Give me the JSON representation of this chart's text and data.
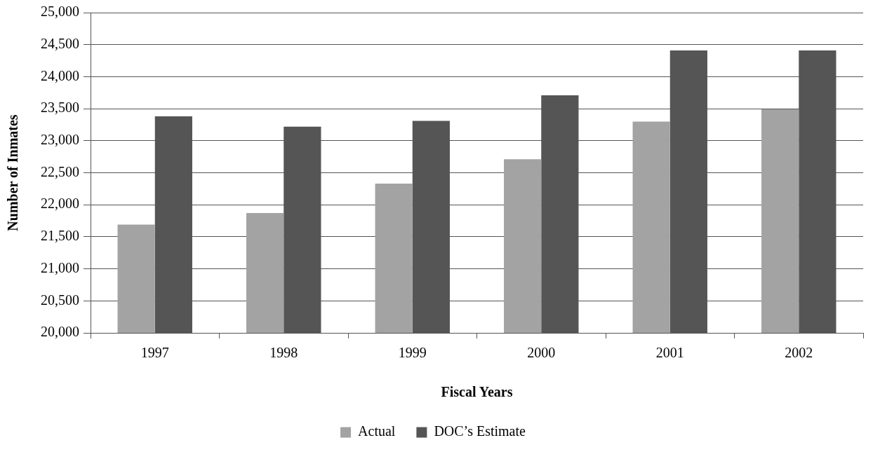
{
  "chart_data": {
    "type": "bar",
    "xlabel": "Fiscal Years",
    "ylabel": "Number of Inmates",
    "categories": [
      "1997",
      "1998",
      "1999",
      "2000",
      "2001",
      "2002"
    ],
    "series": [
      {
        "name": "Actual",
        "color": "#a3a3a3",
        "values": [
          21690,
          21870,
          22330,
          22710,
          23300,
          23490
        ]
      },
      {
        "name": "DOC’s Estimate",
        "color": "#555555",
        "values": [
          23380,
          23220,
          23310,
          23710,
          24410,
          24410
        ]
      }
    ],
    "ylim": [
      20000,
      25000
    ],
    "yticks": [
      {
        "value": 20000,
        "label": "20,000"
      },
      {
        "value": 20500,
        "label": "20,500"
      },
      {
        "value": 21000,
        "label": "21,000"
      },
      {
        "value": 21500,
        "label": "21,500"
      },
      {
        "value": 22000,
        "label": "22,000"
      },
      {
        "value": 22500,
        "label": "22,500"
      },
      {
        "value": 23000,
        "label": "23,000"
      },
      {
        "value": 23500,
        "label": "23,500"
      },
      {
        "value": 24000,
        "label": "24,000"
      },
      {
        "value": 24500,
        "label": "24,500"
      },
      {
        "value": 25000,
        "label": "25,000"
      }
    ],
    "grid": "y",
    "legend": "bottom"
  }
}
